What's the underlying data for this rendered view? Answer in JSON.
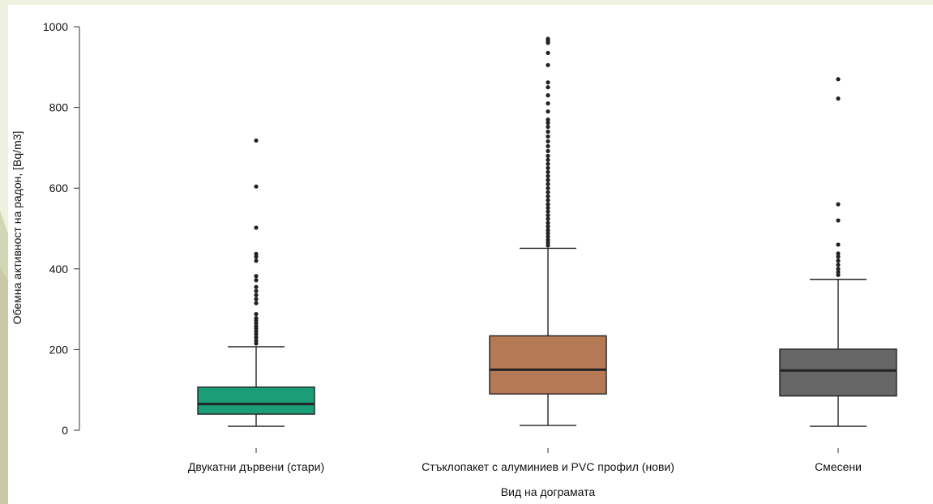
{
  "chart_data": {
    "type": "box",
    "xlabel": "Вид на дограмата",
    "ylabel": "Обемна активност на радон, [Bq/m3]",
    "ylim": [
      0,
      1000
    ],
    "yticks": [
      0,
      200,
      400,
      600,
      800,
      1000
    ],
    "grid": false,
    "legend": "none",
    "categories": [
      "Двукатни дървени (стари)",
      "Стъклопакет с алуминиев и PVC профил (нови)",
      "Смесени"
    ],
    "boxes": [
      {
        "category": "Двукатни дървени (стари)",
        "color": "#1b9e77",
        "whisker_low": 10,
        "q1": 40,
        "median": 65,
        "q3": 107,
        "whisker_high": 207,
        "outliers": [
          215,
          222,
          230,
          238,
          245,
          252,
          258,
          265,
          272,
          278,
          288,
          315,
          325,
          335,
          345,
          355,
          372,
          382,
          420,
          430,
          437,
          502,
          604,
          718
        ]
      },
      {
        "category": "Стъклопакет с алуминиев и PVC профил (нови)",
        "color": "#b57a55",
        "whisker_low": 12,
        "q1": 90,
        "median": 150,
        "q3": 234,
        "whisker_high": 451,
        "outliers": [
          458,
          465,
          472,
          480,
          488,
          496,
          505,
          514,
          524,
          533,
          542,
          551,
          560,
          570,
          580,
          590,
          600,
          610,
          620,
          630,
          640,
          650,
          660,
          670,
          680,
          692,
          704,
          716,
          728,
          740,
          752,
          762,
          770,
          790,
          810,
          830,
          850,
          862,
          905,
          935,
          960,
          965,
          970
        ]
      },
      {
        "category": "Смесени",
        "color": "#666666",
        "whisker_low": 10,
        "q1": 85,
        "median": 148,
        "q3": 201,
        "whisker_high": 374,
        "outliers": [
          385,
          392,
          400,
          410,
          420,
          430,
          438,
          460,
          520,
          560,
          822,
          870
        ]
      }
    ]
  }
}
